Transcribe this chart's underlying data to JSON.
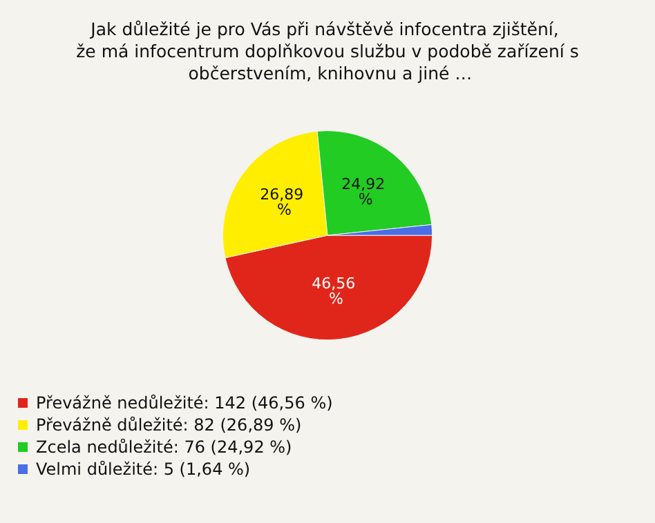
{
  "chart_data": {
    "type": "pie",
    "title": "Jak důležité je pro Vás při návštěvě infocentra zjištění, že má infocentrum doplňkovou službu v podobě zařízení s občerstvením, knihovnu a jiné …",
    "categories": [
      "Převážně nedůležité: 142 (46,56 %)",
      "Převážně důležité: 82 (26,89 %)",
      "Zcela nedůležité: 76 (24,92 %)",
      "Velmi důležité: 5 (1,64 %)"
    ],
    "values": [
      46.56,
      26.89,
      24.92,
      1.64
    ],
    "value_labels": [
      "46,56 %",
      "26,89 %",
      "24,92 %",
      null
    ],
    "colors": [
      "#e0261a",
      "#ffee00",
      "#22cc22",
      "#4a6ee8"
    ],
    "legend": "bottom left"
  }
}
